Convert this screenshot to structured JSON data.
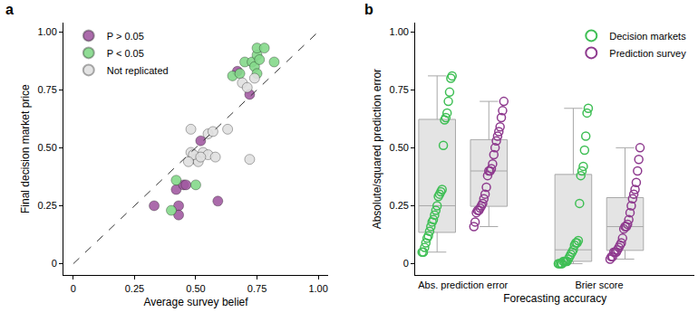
{
  "chart_data": [
    {
      "type": "scatter",
      "title": "a",
      "x_label": "Average survey belief",
      "y_label": "Final decision market price",
      "xlim": [
        -0.04,
        1.04
      ],
      "ylim": [
        -0.05,
        1.04
      ],
      "xticks": [
        0,
        0.25,
        {
          "value": 0.5,
          "label": "0.50"
        },
        0.75,
        {
          "value": 1,
          "label": "1.00"
        }
      ],
      "yticks": [
        0,
        0.25,
        {
          "value": 0.5,
          "label": "0.50"
        },
        0.75,
        {
          "value": 1,
          "label": "1.00"
        }
      ],
      "grid": false,
      "legend": "upper left",
      "series": [
        {
          "name": "P > 0.05",
          "color": "#a25ba2",
          "marker": "circle",
          "x": [
            0.33,
            0.42,
            0.43,
            0.43,
            0.45,
            0.46,
            0.52,
            0.59,
            0.72,
            0.67
          ],
          "values": [
            0.25,
            0.32,
            0.25,
            0.21,
            0.34,
            0.34,
            0.53,
            0.27,
            0.73,
            0.83
          ]
        },
        {
          "name": "P < 0.05",
          "color": "#84d98a",
          "marker": "circle",
          "x": [
            0.65,
            0.68,
            0.7,
            0.73,
            0.75,
            0.75,
            0.74,
            0.75,
            0.78,
            0.82,
            0.76,
            0.42,
            0.4,
            0.5
          ],
          "values": [
            0.81,
            0.82,
            0.87,
            0.87,
            0.9,
            0.93,
            0.85,
            0.82,
            0.93,
            0.87,
            0.88,
            0.36,
            0.23,
            0.34
          ]
        },
        {
          "name": "Not replicated",
          "color": "#e0e0e0",
          "marker": "circle",
          "x": [
            0.48,
            0.48,
            0.5,
            0.51,
            0.49,
            0.53,
            0.55,
            0.55,
            0.57,
            0.58,
            0.63,
            0.69,
            0.71,
            0.72,
            0.74,
            0.52,
            0.47
          ],
          "values": [
            0.58,
            0.48,
            0.45,
            0.44,
            0.47,
            0.48,
            0.47,
            0.56,
            0.57,
            0.46,
            0.58,
            0.78,
            0.76,
            0.45,
            0.8,
            0.46,
            0.44
          ]
        },
        {
          "type": "line",
          "line_style": "dashed",
          "color": "#333333",
          "x": [
            0,
            1
          ],
          "values": [
            0,
            1
          ]
        }
      ]
    },
    {
      "type": "box",
      "title": "b",
      "x_label": "Forecasting accuracy",
      "y_label": "Absolute/squared prediction error",
      "categories": [
        "Abs. prediction error",
        "Brier score"
      ],
      "ylim": [
        -0.05,
        1.04
      ],
      "yticks": [
        0,
        0.25,
        {
          "value": 0.5,
          "label": "0.50"
        },
        0.75,
        {
          "value": 1,
          "label": "1.00"
        }
      ],
      "grid": false,
      "legend": "upper right",
      "series": [
        {
          "name": "Decision markets",
          "color": "#3fbf55",
          "marker": "open",
          "values": [
            [
              0.05,
              0.05,
              0.07,
              0.09,
              0.11,
              0.12,
              0.14,
              0.16,
              0.18,
              0.19,
              0.21,
              0.23,
              0.25,
              0.29,
              0.3,
              0.31,
              0.32,
              0.51,
              0.62,
              0.63,
              0.65,
              0.7,
              0.74,
              0.8,
              0.81
            ],
            [
              0.0,
              0.0,
              0.0,
              0.0,
              0.01,
              0.01,
              0.01,
              0.01,
              0.02,
              0.03,
              0.04,
              0.05,
              0.06,
              0.08,
              0.09,
              0.09,
              0.1,
              0.26,
              0.38,
              0.4,
              0.42,
              0.49,
              0.55,
              0.65,
              0.67
            ]
          ]
        },
        {
          "name": "Prediction survey",
          "color": "#8e3a8e",
          "marker": "open",
          "values": [
            [
              0.16,
              0.18,
              0.22,
              0.23,
              0.23,
              0.24,
              0.25,
              0.26,
              0.28,
              0.3,
              0.33,
              0.38,
              0.4,
              0.4,
              0.41,
              0.43,
              0.47,
              0.5,
              0.53,
              0.55,
              0.57,
              0.59,
              0.63,
              0.66,
              0.7
            ],
            [
              0.02,
              0.03,
              0.03,
              0.05,
              0.05,
              0.05,
              0.06,
              0.07,
              0.08,
              0.09,
              0.11,
              0.15,
              0.16,
              0.16,
              0.17,
              0.19,
              0.22,
              0.25,
              0.28,
              0.3,
              0.32,
              0.35,
              0.4,
              0.45,
              0.5
            ]
          ]
        }
      ]
    }
  ]
}
